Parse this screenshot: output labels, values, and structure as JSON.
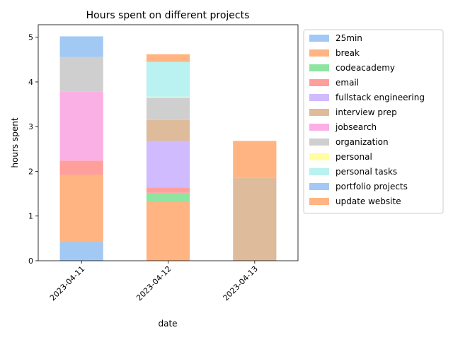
{
  "chart_data": {
    "type": "bar",
    "stacked": true,
    "title": "Hours spent on different projects",
    "xlabel": "date",
    "ylabel": "hours spent",
    "ylim": [
      0,
      5.28
    ],
    "yticks": [
      0,
      1,
      2,
      3,
      4,
      5
    ],
    "grid": false,
    "legend_position": "outside-right",
    "categories": [
      "2023-04-11",
      "2023-04-12",
      "2023-04-13"
    ],
    "series": [
      {
        "name": "25min",
        "color": "#a1c9f4",
        "values": [
          0.42,
          0,
          0
        ]
      },
      {
        "name": "break",
        "color": "#ffb482",
        "values": [
          1.5,
          1.32,
          0
        ]
      },
      {
        "name": "codeacademy",
        "color": "#8de5a1",
        "values": [
          0,
          0.2,
          0
        ]
      },
      {
        "name": "email",
        "color": "#ff9f9b",
        "values": [
          0.32,
          0.12,
          0
        ]
      },
      {
        "name": "fullstack engineering",
        "color": "#d0bbff",
        "values": [
          0,
          1.04,
          0
        ]
      },
      {
        "name": "interview prep",
        "color": "#debb9b",
        "values": [
          0,
          0.47,
          1.86
        ]
      },
      {
        "name": "jobsearch",
        "color": "#fab0e4",
        "values": [
          1.54,
          0,
          0
        ]
      },
      {
        "name": "organization",
        "color": "#cfcfcf",
        "values": [
          0.78,
          0.5,
          0
        ]
      },
      {
        "name": "personal",
        "color": "#fffea3",
        "values": [
          0,
          0.02,
          0
        ]
      },
      {
        "name": "personal tasks",
        "color": "#b9f2f0",
        "values": [
          0,
          0.78,
          0
        ]
      },
      {
        "name": "portfolio projects",
        "color": "#a1c9f4",
        "values": [
          0.46,
          0,
          0
        ]
      },
      {
        "name": "update website",
        "color": "#ffb482",
        "values": [
          0,
          0.17,
          0.82
        ]
      }
    ]
  }
}
